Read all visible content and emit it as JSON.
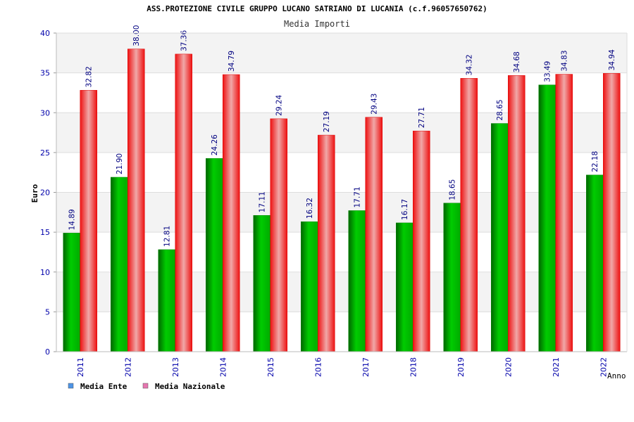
{
  "chart_data": {
    "type": "bar",
    "title": "ASS.PROTEZIONE CIVILE GRUPPO LUCANO SATRIANO DI LUCANIA (c.f.96057650762)",
    "subtitle": "Media Importi",
    "xlabel": "Anno",
    "ylabel": "Euro",
    "ylim": [
      0,
      40
    ],
    "yticks": [
      0,
      5,
      10,
      15,
      20,
      25,
      30,
      35,
      40
    ],
    "grid": true,
    "legend_position": "bottom-left",
    "categories": [
      "2011",
      "2012",
      "2013",
      "2014",
      "2015",
      "2016",
      "2017",
      "2018",
      "2019",
      "2020",
      "2021",
      "2022"
    ],
    "series": [
      {
        "name": "Media Ente",
        "color": "#00aa00",
        "legend_color": "#4d94e6",
        "values": [
          14.89,
          21.9,
          12.81,
          24.26,
          17.11,
          16.32,
          17.71,
          16.17,
          18.65,
          28.65,
          33.49,
          22.18
        ],
        "labels": [
          "14.89",
          "21.90",
          "12.81",
          "24.26",
          "17.11",
          "16.32",
          "17.71",
          "16.17",
          "18.65",
          "28.65",
          "33.49",
          "22.18"
        ]
      },
      {
        "name": "Media Nazionale",
        "color": "#ee1111",
        "legend_color": "#e676b0",
        "values": [
          32.82,
          38.0,
          37.36,
          34.79,
          29.24,
          27.19,
          29.43,
          27.71,
          34.32,
          34.68,
          34.83,
          34.94
        ],
        "labels": [
          "32.82",
          "38.00",
          "37.36",
          "34.79",
          "29.24",
          "27.19",
          "29.43",
          "27.71",
          "34.32",
          "34.68",
          "34.83",
          "34.94"
        ]
      }
    ]
  }
}
